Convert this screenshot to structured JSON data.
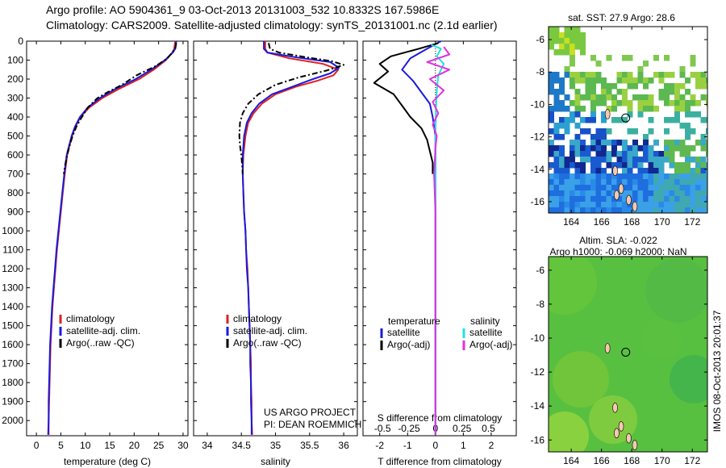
{
  "title": {
    "line1": "Argo profile: AO 5904361_9 03-Oct-2013 20131003_532 10.8332S 167.5986E",
    "line2": "Climatology: CARS2009. Satellite-adjusted climatology: synTS_20131001.nc (2.1d earlier)"
  },
  "chart_data": [
    {
      "type": "line",
      "name": "temperature",
      "xlabel": "temperature (deg C)",
      "xlim": [
        -2,
        31
      ],
      "xticks": [
        0,
        5,
        10,
        15,
        20,
        25,
        30
      ],
      "ylim": [
        2080,
        0
      ],
      "yticks": [
        0,
        100,
        200,
        300,
        400,
        500,
        600,
        700,
        800,
        900,
        1000,
        1100,
        1200,
        1300,
        1400,
        1500,
        1600,
        1700,
        1800,
        1900,
        2000
      ],
      "legend": [
        {
          "label": "climatology",
          "color": "#e02020"
        },
        {
          "label": "satellite-adj. clim.",
          "color": "#1a1adc"
        },
        {
          "label": "Argo(..raw -QC)",
          "color": "#000000"
        }
      ],
      "series": [
        {
          "name": "climatology",
          "color": "#e02020",
          "dash": "",
          "points": [
            [
              28.4,
              0
            ],
            [
              28.2,
              40
            ],
            [
              27.8,
              60
            ],
            [
              26.5,
              100
            ],
            [
              24,
              150
            ],
            [
              21,
              200
            ],
            [
              17,
              250
            ],
            [
              13.5,
              300
            ],
            [
              10.8,
              350
            ],
            [
              9,
              400
            ],
            [
              8,
              450
            ],
            [
              7.3,
              500
            ],
            [
              6.8,
              550
            ],
            [
              6.3,
              600
            ],
            [
              5.8,
              700
            ],
            [
              5.4,
              800
            ],
            [
              5,
              900
            ],
            [
              4.6,
              1000
            ],
            [
              4.2,
              1100
            ],
            [
              3.9,
              1200
            ],
            [
              3.6,
              1300
            ],
            [
              3.3,
              1400
            ],
            [
              3.1,
              1500
            ],
            [
              2.9,
              1600
            ],
            [
              2.8,
              1700
            ],
            [
              2.7,
              1800
            ],
            [
              2.6,
              1900
            ],
            [
              2.5,
              2000
            ],
            [
              2.5,
              2075
            ]
          ]
        },
        {
          "name": "satellite-adj. clim.",
          "color": "#1a1adc",
          "dash": "",
          "points": [
            [
              28.6,
              0
            ],
            [
              28.4,
              40
            ],
            [
              27.9,
              60
            ],
            [
              26.3,
              100
            ],
            [
              23.5,
              150
            ],
            [
              20.3,
              200
            ],
            [
              16.3,
              250
            ],
            [
              13,
              300
            ],
            [
              10.5,
              350
            ],
            [
              8.9,
              400
            ],
            [
              7.9,
              450
            ],
            [
              7.2,
              500
            ],
            [
              6.7,
              550
            ],
            [
              6.2,
              600
            ],
            [
              5.7,
              700
            ],
            [
              5.3,
              800
            ],
            [
              4.9,
              900
            ],
            [
              4.5,
              1000
            ],
            [
              4.1,
              1100
            ],
            [
              3.8,
              1200
            ],
            [
              3.5,
              1300
            ],
            [
              3.2,
              1400
            ],
            [
              3,
              1500
            ],
            [
              2.8,
              1600
            ],
            [
              2.7,
              1700
            ],
            [
              2.6,
              1800
            ],
            [
              2.5,
              1900
            ],
            [
              2.5,
              2000
            ],
            [
              2.4,
              2075
            ]
          ]
        },
        {
          "name": "Argo(..raw -QC)",
          "color": "#000000",
          "dash": "7,3,2,3",
          "points": [
            [
              28.6,
              10
            ],
            [
              28.4,
              40
            ],
            [
              27.8,
              60
            ],
            [
              26.8,
              90
            ],
            [
              24.5,
              130
            ],
            [
              20.5,
              180
            ],
            [
              17.5,
              230
            ],
            [
              14.5,
              270
            ],
            [
              12.5,
              300
            ],
            [
              10.5,
              350
            ],
            [
              9.3,
              400
            ],
            [
              8.2,
              450
            ],
            [
              7.4,
              500
            ],
            [
              6.8,
              550
            ],
            [
              6.3,
              600
            ],
            [
              5.9,
              650
            ],
            [
              5.6,
              700
            ]
          ]
        }
      ]
    },
    {
      "type": "line",
      "name": "salinity",
      "xlabel": "salinity",
      "xlim": [
        33.8,
        36.2
      ],
      "xticks": [
        34,
        34.5,
        35,
        35.5,
        36
      ],
      "ylim": [
        2080,
        0
      ],
      "legend": [
        {
          "label": "climatology",
          "color": "#e02020"
        },
        {
          "label": "satellite-adj. clim.",
          "color": "#1a1adc"
        },
        {
          "label": "Argo(..raw -QC)",
          "color": "#000000"
        }
      ],
      "annotations": [
        "US ARGO PROJECT",
        "PI: DEAN ROEMMICH"
      ],
      "series": [
        {
          "name": "climatology",
          "color": "#e02020",
          "dash": "",
          "points": [
            [
              34.85,
              0
            ],
            [
              34.85,
              40
            ],
            [
              34.88,
              60
            ],
            [
              35.2,
              90
            ],
            [
              35.7,
              120
            ],
            [
              35.92,
              150
            ],
            [
              35.85,
              180
            ],
            [
              35.6,
              210
            ],
            [
              35.3,
              240
            ],
            [
              35.0,
              280
            ],
            [
              34.8,
              330
            ],
            [
              34.68,
              380
            ],
            [
              34.6,
              430
            ],
            [
              34.56,
              500
            ],
            [
              34.53,
              600
            ],
            [
              34.52,
              700
            ],
            [
              34.53,
              800
            ],
            [
              34.54,
              900
            ],
            [
              34.56,
              1000
            ],
            [
              34.57,
              1100
            ],
            [
              34.59,
              1200
            ],
            [
              34.6,
              1300
            ],
            [
              34.61,
              1400
            ],
            [
              34.62,
              1500
            ],
            [
              34.63,
              1600
            ],
            [
              34.64,
              1700
            ],
            [
              34.64,
              1800
            ],
            [
              34.65,
              1900
            ],
            [
              34.65,
              2000
            ],
            [
              34.66,
              2075
            ]
          ]
        },
        {
          "name": "satellite-adj. clim.",
          "color": "#1a1adc",
          "dash": "",
          "points": [
            [
              34.83,
              0
            ],
            [
              34.83,
              40
            ],
            [
              34.88,
              60
            ],
            [
              35.3,
              85
            ],
            [
              35.8,
              110
            ],
            [
              35.93,
              140
            ],
            [
              35.8,
              170
            ],
            [
              35.55,
              200
            ],
            [
              35.25,
              240
            ],
            [
              34.95,
              280
            ],
            [
              34.76,
              330
            ],
            [
              34.65,
              380
            ],
            [
              34.58,
              430
            ],
            [
              34.54,
              500
            ],
            [
              34.52,
              600
            ],
            [
              34.52,
              700
            ],
            [
              34.53,
              800
            ],
            [
              34.54,
              900
            ],
            [
              34.56,
              1000
            ],
            [
              34.57,
              1100
            ],
            [
              34.58,
              1200
            ],
            [
              34.6,
              1300
            ],
            [
              34.61,
              1400
            ],
            [
              34.62,
              1500
            ],
            [
              34.63,
              1600
            ],
            [
              34.63,
              1700
            ],
            [
              34.64,
              1800
            ],
            [
              34.64,
              1900
            ],
            [
              34.65,
              2000
            ],
            [
              34.65,
              2075
            ]
          ]
        },
        {
          "name": "Argo(..raw -QC)",
          "color": "#000000",
          "dash": "7,3,2,3",
          "points": [
            [
              34.9,
              10
            ],
            [
              34.92,
              40
            ],
            [
              35.05,
              60
            ],
            [
              35.45,
              85
            ],
            [
              35.82,
              105
            ],
            [
              36.0,
              125
            ],
            [
              35.75,
              155
            ],
            [
              35.35,
              190
            ],
            [
              35.0,
              230
            ],
            [
              34.75,
              280
            ],
            [
              34.6,
              330
            ],
            [
              34.52,
              380
            ],
            [
              34.48,
              430
            ],
            [
              34.47,
              500
            ],
            [
              34.48,
              550
            ],
            [
              34.5,
              600
            ],
            [
              34.51,
              650
            ],
            [
              34.52,
              700
            ]
          ]
        }
      ]
    },
    {
      "type": "line",
      "name": "differences",
      "xlabel": "T difference from climatology",
      "xlim": [
        -2.6,
        2.9
      ],
      "xticks": [
        -2,
        -1,
        0,
        1,
        2
      ],
      "xlabel2": "S difference from climatology",
      "xticks2": [
        "-0.5",
        "-0.25",
        "0",
        "0.25",
        "0.5"
      ],
      "ylim": [
        2080,
        0
      ],
      "legend": {
        "temperature_title": "temperature",
        "salinity_title": "salinity",
        "entries": [
          {
            "label": "satellite",
            "color": "#1a1adc",
            "group": "temperature"
          },
          {
            "label": "Argo(-adj)",
            "color": "#000000",
            "group": "temperature"
          },
          {
            "label": "satellite",
            "color": "#22e0e0",
            "group": "salinity"
          },
          {
            "label": "Argo(-adj)",
            "color": "#e030e0",
            "group": "salinity"
          }
        ]
      },
      "series": [
        {
          "name": "T satellite",
          "color": "#1a1adc",
          "dash": "",
          "points": [
            [
              0.2,
              0
            ],
            [
              -0.3,
              40
            ],
            [
              -0.9,
              90
            ],
            [
              -1.2,
              150
            ],
            [
              -0.8,
              210
            ],
            [
              -0.5,
              270
            ],
            [
              -0.2,
              330
            ],
            [
              -0.1,
              400
            ],
            [
              0,
              500
            ],
            [
              0,
              700
            ],
            [
              0,
              1000
            ],
            [
              0,
              1500
            ],
            [
              0,
              2075
            ]
          ]
        },
        {
          "name": "T Argo(-adj)",
          "color": "#000000",
          "dash": "",
          "points": [
            [
              0.1,
              10
            ],
            [
              -0.6,
              40
            ],
            [
              -1.6,
              80
            ],
            [
              -2.0,
              120
            ],
            [
              -1.7,
              160
            ],
            [
              -2.2,
              220
            ],
            [
              -1.5,
              280
            ],
            [
              -1.2,
              340
            ],
            [
              -0.9,
              400
            ],
            [
              -0.5,
              460
            ],
            [
              -0.3,
              520
            ],
            [
              -0.2,
              580
            ],
            [
              -0.1,
              640
            ],
            [
              -0.1,
              700
            ]
          ]
        },
        {
          "name": "S satellite",
          "color": "#22e0e0",
          "dash": "",
          "points": [
            [
              -0.15,
              20
            ],
            [
              0.2,
              40
            ],
            [
              0.05,
              80
            ],
            [
              0.3,
              120
            ],
            [
              0.1,
              180
            ],
            [
              0.05,
              260
            ],
            [
              0.02,
              360
            ],
            [
              0.0,
              500
            ],
            [
              0.0,
              700
            ],
            [
              0.0,
              1000
            ],
            [
              0.0,
              1500
            ],
            [
              0.0,
              2075
            ]
          ]
        },
        {
          "name": "S Argo(-adj)",
          "color": "#e030e0",
          "dash": "",
          "points": [
            [
              0.3,
              30
            ],
            [
              0.5,
              70
            ],
            [
              -0.3,
              110
            ],
            [
              0.5,
              150
            ],
            [
              -0.2,
              200
            ],
            [
              0.3,
              260
            ],
            [
              -0.1,
              320
            ],
            [
              0.1,
              380
            ],
            [
              -0.1,
              440
            ],
            [
              0.05,
              500
            ],
            [
              0.0,
              560
            ],
            [
              -0.05,
              700
            ],
            [
              0,
              900
            ],
            [
              0,
              1200
            ],
            [
              0,
              1600
            ],
            [
              0,
              2075
            ]
          ]
        }
      ]
    }
  ],
  "maps": [
    {
      "title": "sat. SST: 27.9 Argo: 28.6",
      "xticks": [
        164,
        166,
        168,
        170,
        172
      ],
      "yticks": [
        -6,
        -8,
        -10,
        -12,
        -14,
        -16
      ],
      "xlim": [
        162.5,
        173
      ],
      "ylim": [
        -16.7,
        -5.2
      ]
    },
    {
      "title": "Altim. SLA: -0.022",
      "subtitle": "Argo h1000: -0.069 h2000: NaN",
      "xticks": [
        164,
        166,
        168,
        170,
        172
      ],
      "yticks": [
        -6,
        -8,
        -10,
        -12,
        -14,
        -16
      ],
      "xlim": [
        162.5,
        173
      ],
      "ylim": [
        -16.7,
        -5.2
      ]
    }
  ],
  "side_label": "IMOS 08-Oct-2013 20:01:37"
}
